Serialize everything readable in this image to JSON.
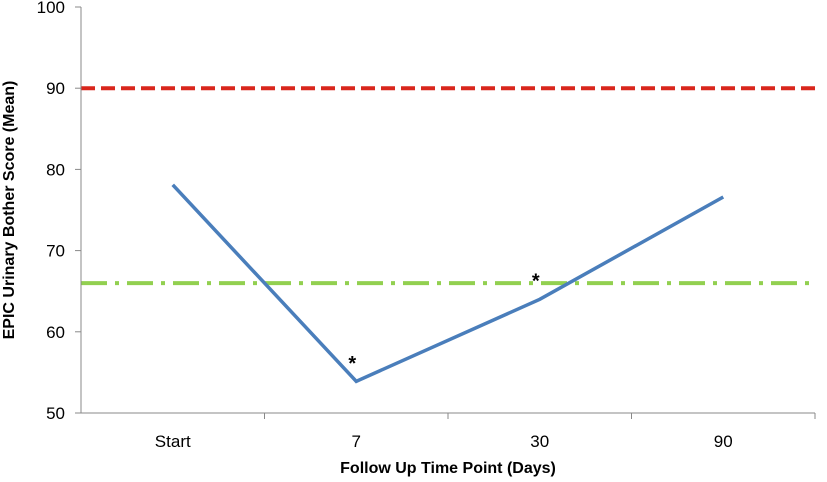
{
  "chart_data": {
    "type": "line",
    "xlabel": "Follow Up Time Point (Days)",
    "ylabel": "EPIC Urinary Bother  Score (Mean)",
    "categories": [
      "Start",
      "7",
      "30",
      "90"
    ],
    "ylim": [
      50,
      100
    ],
    "yticks": [
      50,
      60,
      70,
      80,
      90,
      100
    ],
    "grid": false,
    "series": [
      {
        "values": [
          78.1,
          53.9,
          64.0,
          76.6
        ],
        "color": "#4a7ebb",
        "style": "solid"
      }
    ],
    "reference_lines": [
      {
        "value": 90,
        "color": "#d9261c",
        "style": "dashed"
      },
      {
        "value": 66,
        "color": "#92d050",
        "style": "dash-dot"
      }
    ],
    "annotations": [
      {
        "category": "7",
        "y": 56.5,
        "text": "*"
      },
      {
        "category": "30",
        "y": 66.7,
        "text": "*"
      }
    ]
  }
}
